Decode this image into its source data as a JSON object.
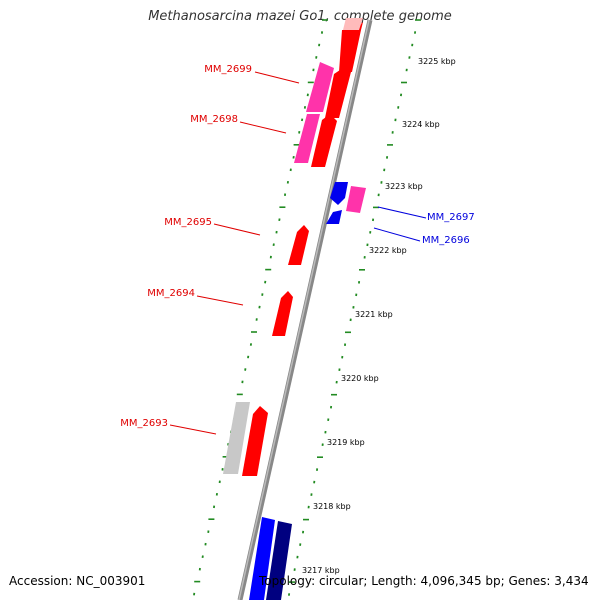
{
  "title": "Methanosarcina mazei Go1, complete genome",
  "footer": {
    "accession": "Accession: NC_003901",
    "summary": "Topology: circular; Length: 4,096,345 bp; Genes: 3,434"
  },
  "ruler": {
    "unit": "kbp",
    "ticks": [
      {
        "label": "3225 kbp",
        "kbp": 3225
      },
      {
        "label": "3224 kbp",
        "kbp": 3224
      },
      {
        "label": "3223 kbp",
        "kbp": 3223
      },
      {
        "label": "3222 kbp",
        "kbp": 3222
      },
      {
        "label": "3221 kbp",
        "kbp": 3221
      },
      {
        "label": "3220 kbp",
        "kbp": 3220
      },
      {
        "label": "3219 kbp",
        "kbp": 3219
      },
      {
        "label": "3218 kbp",
        "kbp": 3218
      },
      {
        "label": "3217 kbp",
        "kbp": 3217
      }
    ]
  },
  "genes": [
    {
      "label": "MM_2699",
      "color": "#e00000",
      "side": "left"
    },
    {
      "label": "MM_2698",
      "color": "#e00000",
      "side": "left"
    },
    {
      "label": "MM_2695",
      "color": "#e00000",
      "side": "left"
    },
    {
      "label": "MM_2694",
      "color": "#e00000",
      "side": "left"
    },
    {
      "label": "MM_2693",
      "color": "#e00000",
      "side": "left"
    },
    {
      "label": "MM_2697",
      "color": "#0000dd",
      "side": "right"
    },
    {
      "label": "MM_2696",
      "color": "#0000dd",
      "side": "right"
    }
  ],
  "colors": {
    "forward_cds": "#ff0000",
    "reverse_cds": "#0000ff",
    "forward_rna": "#ff33aa",
    "pseudo": "#bbbbbb",
    "dark_reverse": "#000080",
    "backbone": "#888888",
    "tick": "#228b22"
  }
}
